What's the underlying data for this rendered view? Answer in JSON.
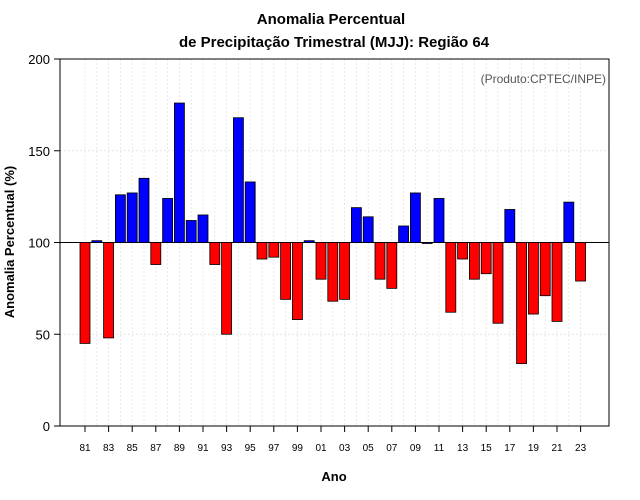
{
  "chart_data": {
    "type": "bar",
    "title": "Anomalia Percentual",
    "subtitle": "de Precipitação Trimestral (MJJ): Região 64",
    "xlabel": "Ano",
    "ylabel": "Anomalia Percentual (%)",
    "source_note": "(Produto:CPTEC/INPE)",
    "ylim": [
      0,
      200
    ],
    "yticks": [
      "0",
      "50",
      "100",
      "150",
      "200"
    ],
    "baseline": 100,
    "grid": true,
    "colors": {
      "above": "#0000ff",
      "below": "#ff0000",
      "outline": "#000000"
    },
    "categories": [
      "81",
      "82",
      "83",
      "84",
      "85",
      "86",
      "87",
      "88",
      "89",
      "90",
      "91",
      "92",
      "93",
      "94",
      "95",
      "96",
      "97",
      "98",
      "99",
      "00",
      "01",
      "02",
      "03",
      "04",
      "05",
      "06",
      "07",
      "08",
      "09",
      "10",
      "11",
      "12",
      "13",
      "14",
      "15",
      "16",
      "17",
      "18",
      "19",
      "20",
      "21",
      "22",
      "23"
    ],
    "tick_labels": [
      "81",
      "83",
      "85",
      "87",
      "89",
      "91",
      "93",
      "95",
      "97",
      "99",
      "01",
      "03",
      "05",
      "07",
      "09",
      "11",
      "13",
      "15",
      "17",
      "19",
      "21",
      "23"
    ],
    "values": [
      45,
      101,
      48,
      126,
      127,
      135,
      88,
      124,
      176,
      112,
      115,
      88,
      50,
      168,
      133,
      91,
      92,
      69,
      58,
      101,
      80,
      68,
      69,
      119,
      114,
      80,
      75,
      109,
      127,
      100,
      124,
      62,
      91,
      80,
      83,
      56,
      118,
      34,
      61,
      71,
      57,
      122,
      79
    ]
  }
}
